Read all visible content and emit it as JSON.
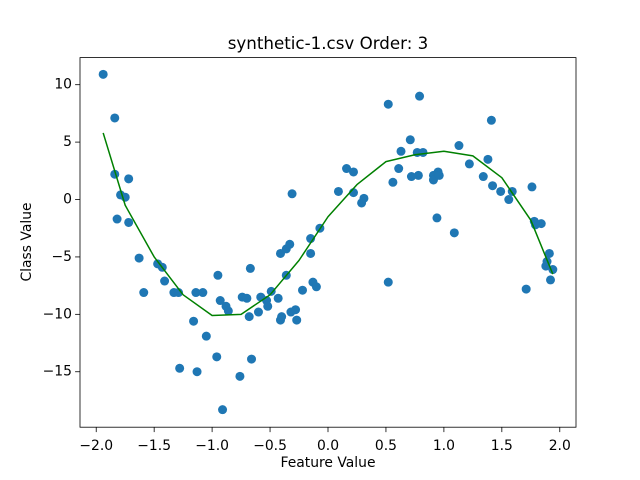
{
  "chart_data": {
    "type": "scatter",
    "title": "synthetic-1.csv Order: 3",
    "xlabel": "Feature Value",
    "ylabel": "Class Value",
    "xlim": [
      -2.14,
      2.14
    ],
    "ylim": [
      -19.83,
      12.36
    ],
    "xticks": [
      {
        "value": -2,
        "label": "−2.0"
      },
      {
        "value": -1.5,
        "label": "−1.5"
      },
      {
        "value": -1,
        "label": "−1.0"
      },
      {
        "value": -0.5,
        "label": "−0.5"
      },
      {
        "value": 0,
        "label": "0.0"
      },
      {
        "value": 0.5,
        "label": "0.5"
      },
      {
        "value": 1,
        "label": "1.0"
      },
      {
        "value": 1.5,
        "label": "1.5"
      },
      {
        "value": 2,
        "label": "2.0"
      }
    ],
    "yticks": [
      {
        "value": -15,
        "label": "−15"
      },
      {
        "value": -10,
        "label": "−10"
      },
      {
        "value": -5,
        "label": "−5"
      },
      0,
      5,
      10
    ],
    "grid": false,
    "series": [
      {
        "type": "scatter",
        "color": "#1f77b4",
        "x": [
          -1.94,
          -1.84,
          -1.84,
          -1.82,
          -1.79,
          -1.75,
          -1.72,
          -1.72,
          -1.63,
          -1.59,
          -1.47,
          -1.43,
          -1.41,
          -1.33,
          -1.29,
          -1.28,
          -1.16,
          -1.14,
          -1.13,
          -1.08,
          -1.05,
          -0.96,
          -0.95,
          -0.93,
          -0.91,
          -0.88,
          -0.86,
          -0.76,
          -0.74,
          -0.7,
          -0.68,
          -0.67,
          -0.66,
          -0.6,
          -0.58,
          -0.53,
          -0.52,
          -0.49,
          -0.43,
          -0.41,
          -0.41,
          -0.4,
          -0.36,
          -0.36,
          -0.33,
          -0.32,
          -0.31,
          -0.28,
          -0.27,
          -0.22,
          -0.15,
          -0.15,
          -0.13,
          -0.1,
          -0.07,
          0.09,
          0.16,
          0.22,
          0.22,
          0.29,
          0.31,
          0.52,
          0.52,
          0.56,
          0.61,
          0.63,
          0.71,
          0.72,
          0.77,
          0.78,
          0.79,
          0.82,
          0.91,
          0.91,
          0.94,
          0.95,
          0.96,
          1.09,
          1.13,
          1.22,
          1.34,
          1.38,
          1.41,
          1.42,
          1.49,
          1.56,
          1.59,
          1.71,
          1.76,
          1.78,
          1.79,
          1.84,
          1.88,
          1.89,
          1.91,
          1.92,
          1.94
        ],
        "values": [
          10.9,
          7.1,
          2.2,
          -1.7,
          0.4,
          0.2,
          1.8,
          -2.0,
          -5.1,
          -8.1,
          -5.6,
          -5.9,
          -7.1,
          -8.1,
          -8.1,
          -14.7,
          -10.6,
          -8.1,
          -15.0,
          -8.1,
          -11.9,
          -13.7,
          -6.6,
          -8.8,
          -18.3,
          -9.3,
          -9.7,
          -15.4,
          -8.5,
          -8.6,
          -10.2,
          -6.0,
          -13.9,
          -9.8,
          -8.5,
          -8.8,
          -9.3,
          -8.0,
          -8.6,
          -4.7,
          -10.5,
          -10.2,
          -4.3,
          -6.6,
          -3.9,
          -9.8,
          0.5,
          -9.6,
          -10.5,
          -7.9,
          -3.4,
          -4.7,
          -7.2,
          -7.6,
          -2.5,
          0.7,
          2.7,
          2.4,
          0.6,
          -0.3,
          0.1,
          -7.2,
          8.3,
          1.5,
          2.7,
          4.2,
          5.2,
          2.0,
          4.1,
          2.1,
          9.0,
          4.1,
          2.1,
          1.7,
          -1.6,
          2.4,
          2.1,
          -2.9,
          4.7,
          3.1,
          2.0,
          3.5,
          6.9,
          1.2,
          0.7,
          0,
          0.7,
          -7.8,
          1.1,
          -1.9,
          -2.2,
          -2.1,
          -5.8,
          -5.4,
          -4.7,
          -7.0,
          -6.1
        ]
      },
      {
        "type": "line",
        "color": "#008000",
        "x": [
          -1.94,
          -1.75,
          -1.5,
          -1.25,
          -1.0,
          -0.75,
          -0.5,
          -0.25,
          0,
          0.25,
          0.5,
          0.75,
          1.0,
          1.25,
          1.5,
          1.75,
          1.94
        ],
        "values": [
          5.8,
          -0.5,
          -5.0,
          -8.3,
          -10.1,
          -10.0,
          -8.3,
          -5.3,
          -1.5,
          1.3,
          3.3,
          3.9,
          4.2,
          3.8,
          1.9,
          -1.8,
          -6.5
        ]
      }
    ]
  }
}
